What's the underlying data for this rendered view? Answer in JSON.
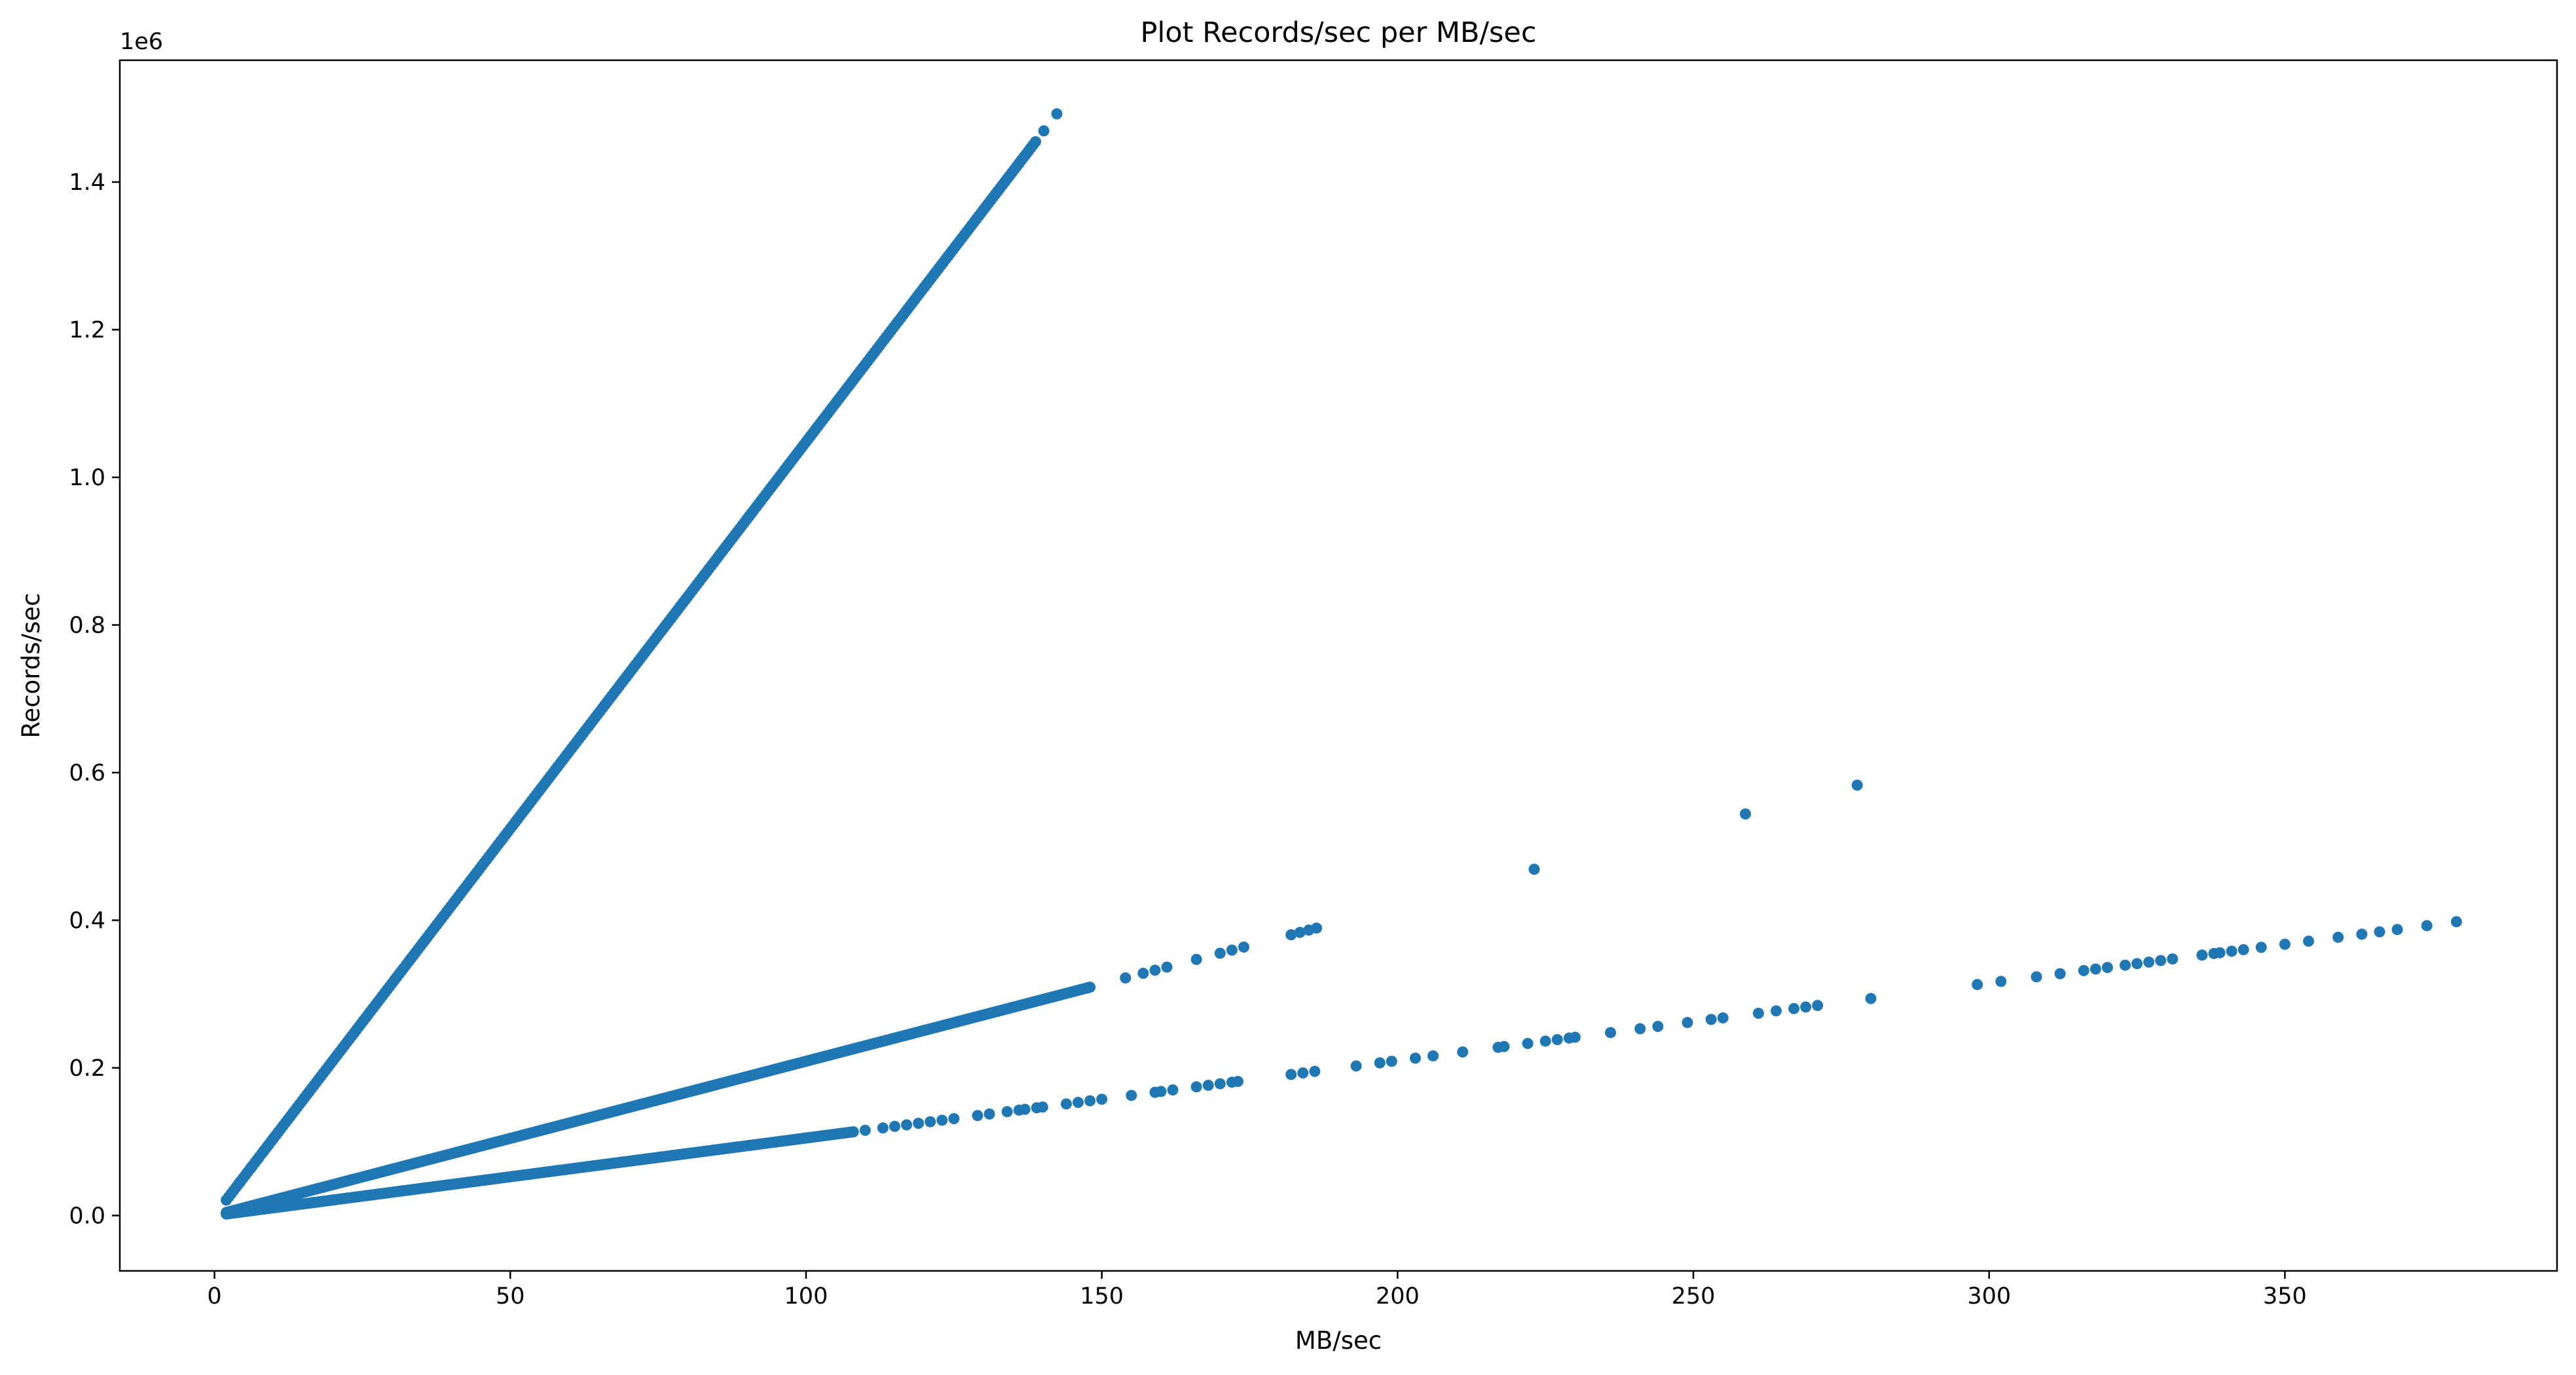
{
  "chart_data": {
    "type": "scatter",
    "title": "Plot Records/sec per MB/sec",
    "xlabel": "MB/sec",
    "ylabel": "Records/sec",
    "y_offset_label": "1e6",
    "xlim": [
      -16,
      396
    ],
    "ylim": [
      -0.075,
      1.565
    ],
    "y_unit_multiplier": 1000000,
    "xticks": [
      0,
      50,
      100,
      150,
      200,
      250,
      300,
      350
    ],
    "yticks": [
      0.0,
      0.2,
      0.4,
      0.6,
      0.8,
      1.0,
      1.2,
      1.4
    ],
    "ytick_labels": [
      "0.0",
      "0.2",
      "0.4",
      "0.6",
      "0.8",
      "1.0",
      "1.2",
      "1.4"
    ],
    "grid": false,
    "marker_color": "#1f77b4",
    "series": [
      {
        "slope_per_mb": 0.01048,
        "dense_range": [
          2,
          139
        ],
        "sparse_x": [
          4.3,
          6.2,
          6.9,
          7.5,
          8.3,
          9.1,
          9.9,
          10.8,
          140.2,
          142.4
        ]
      },
      {
        "slope_per_mb": 0.00209,
        "dense_range": [
          2,
          148
        ],
        "sparse_x": [
          154,
          157,
          159,
          161,
          166,
          170,
          172,
          174,
          182,
          183.5,
          185,
          186.3
        ]
      },
      {
        "slope_per_mb": 0.00105,
        "dense_range": [
          2,
          108
        ],
        "sparse_x": [
          110,
          113,
          115,
          117,
          119,
          121,
          123,
          125,
          129,
          131,
          134,
          136,
          137,
          139,
          140,
          144,
          146,
          148,
          150,
          155,
          159,
          160,
          162,
          166,
          168,
          170,
          172,
          173,
          182,
          184,
          186,
          193,
          197,
          199,
          203,
          206,
          211,
          217,
          218,
          222,
          225,
          227,
          229,
          230,
          236,
          241,
          244,
          249,
          253,
          255,
          261,
          264,
          267,
          269,
          271,
          280,
          298,
          302,
          308,
          312,
          316,
          318,
          320,
          323,
          325,
          327,
          329,
          331,
          336,
          338,
          339,
          341,
          343,
          346,
          350,
          354,
          359,
          363,
          366,
          369,
          374,
          379
        ]
      }
    ],
    "outliers": [
      {
        "x": 223.1,
        "y": 0.469
      },
      {
        "x": 258.8,
        "y": 0.544
      },
      {
        "x": 277.7,
        "y": 0.583
      }
    ]
  }
}
